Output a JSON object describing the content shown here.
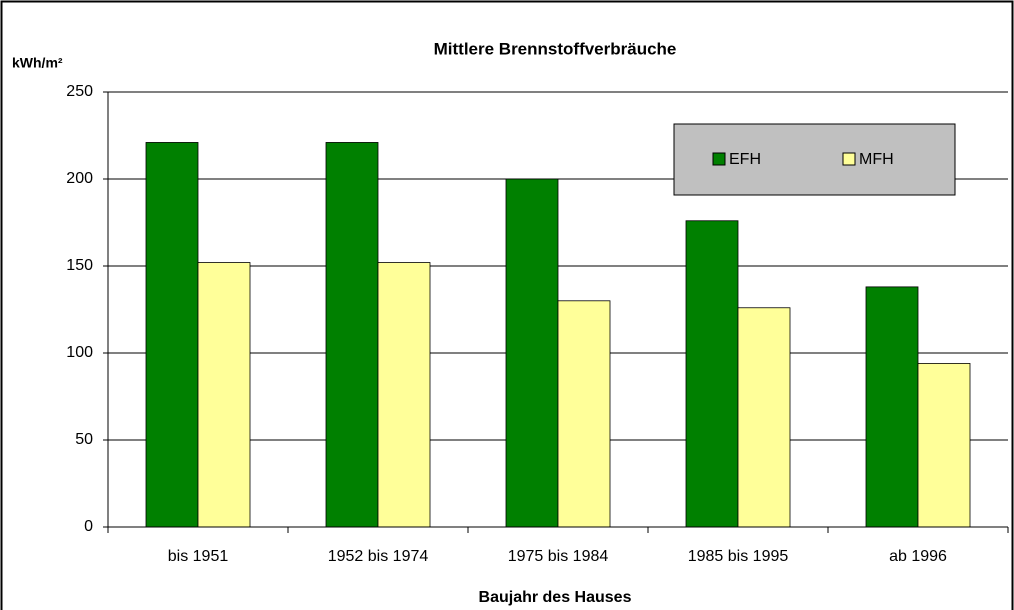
{
  "chart_data": {
    "type": "bar",
    "title": "Mittlere Brennstoffverbräuche",
    "y_label": "kWh/m²",
    "x_label": "Baujahr des Hauses",
    "categories": [
      "bis 1951",
      "1952 bis 1974",
      "1975 bis 1984",
      "1985 bis 1995",
      "ab 1996"
    ],
    "series": [
      {
        "name": "EFH",
        "color": "#008000",
        "values": [
          221,
          221,
          200,
          176,
          138
        ]
      },
      {
        "name": "MFH",
        "color": "#ffff99",
        "values": [
          152,
          152,
          130,
          126,
          94
        ]
      }
    ],
    "ylim": [
      0,
      250
    ],
    "yticks": [
      0,
      50,
      100,
      150,
      200,
      250
    ],
    "grid": true,
    "legend": "upper right"
  }
}
